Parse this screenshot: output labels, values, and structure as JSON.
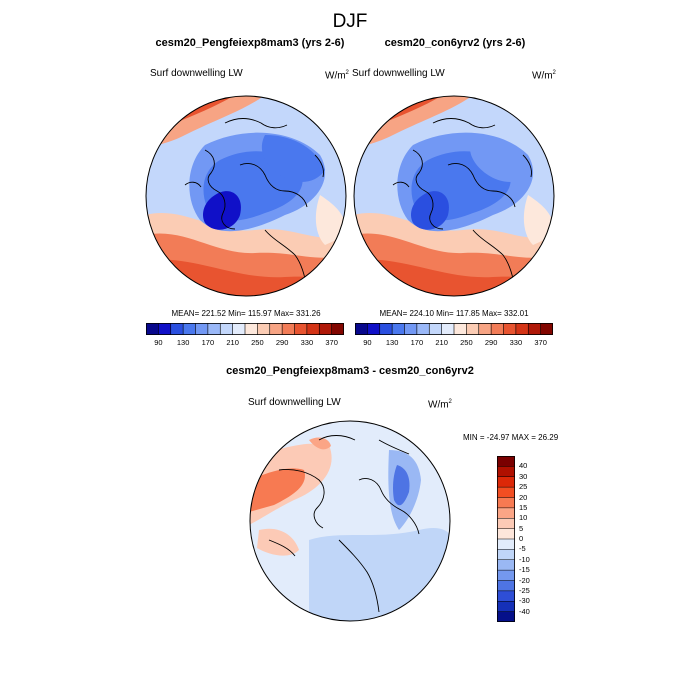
{
  "figure": {
    "title": "DJF",
    "panel1": {
      "title": "cesm20_Pengfeiexp8mam3 (yrs 2-6)",
      "left_label": "Surf downwelling LW",
      "units_base": "W/m",
      "units_exp": "2",
      "stats": "MEAN= 221.52  Min= 115.97  Max= 331.26"
    },
    "panel2": {
      "title": "cesm20_con6yrv2 (yrs 2-6)",
      "left_label": "Surf downwelling LW",
      "units_base": "W/m",
      "units_exp": "2",
      "stats": "MEAN= 224.10  Min= 117.85  Max= 332.01"
    },
    "panel3": {
      "title": "cesm20_Pengfeiexp8mam3 - cesm20_con6yrv2",
      "left_label": "Surf downwelling LW",
      "units_base": "W/m",
      "units_exp": "2",
      "stats": "MIN = -24.97 MAX =  26.29"
    },
    "colorbar_h_ticks": [
      "90",
      "130",
      "170",
      "210",
      "250",
      "290",
      "330",
      "370"
    ],
    "colorbar_v_ticks": [
      "40",
      "30",
      "25",
      "20",
      "15",
      "10",
      "5",
      "0",
      "-5",
      "-10",
      "-15",
      "-20",
      "-25",
      "-30",
      "-40"
    ]
  },
  "colors": {
    "abs_scale": [
      "#08088c",
      "#1010c8",
      "#2a4fe0",
      "#4a78ee",
      "#7298f4",
      "#9ab8f8",
      "#c3d7fb",
      "#e3ecfc",
      "#fde8dc",
      "#fbccb4",
      "#f7a484",
      "#f27c57",
      "#e85430",
      "#d43416",
      "#b01808",
      "#820600"
    ],
    "diff_scale": [
      "#7a0000",
      "#b01000",
      "#dc2808",
      "#f24e22",
      "#f77a52",
      "#fba586",
      "#fccab6",
      "#fde6db",
      "#e2ecfb",
      "#c0d6f8",
      "#9ab8f4",
      "#7498ee",
      "#4e74e4",
      "#2e4ed6",
      "#1530b8",
      "#05108a"
    ]
  },
  "chart_data": [
    {
      "type": "heatmap",
      "title": "cesm20_Pengfeiexp8mam3 (yrs 2-6)",
      "variable": "Surf downwelling LW",
      "units": "W/m2",
      "projection": "north polar stereographic",
      "stats": {
        "mean": 221.52,
        "min": 115.97,
        "max": 331.26
      },
      "color_levels": [
        90,
        110,
        130,
        150,
        170,
        190,
        210,
        230,
        250,
        270,
        290,
        310,
        330,
        350,
        370
      ]
    },
    {
      "type": "heatmap",
      "title": "cesm20_con6yrv2 (yrs 2-6)",
      "variable": "Surf downwelling LW",
      "units": "W/m2",
      "projection": "north polar stereographic",
      "stats": {
        "mean": 224.1,
        "min": 117.85,
        "max": 332.01
      },
      "color_levels": [
        90,
        110,
        130,
        150,
        170,
        190,
        210,
        230,
        250,
        270,
        290,
        310,
        330,
        350,
        370
      ]
    },
    {
      "type": "heatmap",
      "title": "cesm20_Pengfeiexp8mam3 - cesm20_con6yrv2",
      "variable": "Surf downwelling LW",
      "units": "W/m2",
      "projection": "north polar stereographic",
      "stats": {
        "min": -24.97,
        "max": 26.29
      },
      "color_levels": [
        40,
        30,
        25,
        20,
        15,
        10,
        5,
        0,
        -5,
        -10,
        -15,
        -20,
        -25,
        -30,
        -40
      ]
    }
  ]
}
